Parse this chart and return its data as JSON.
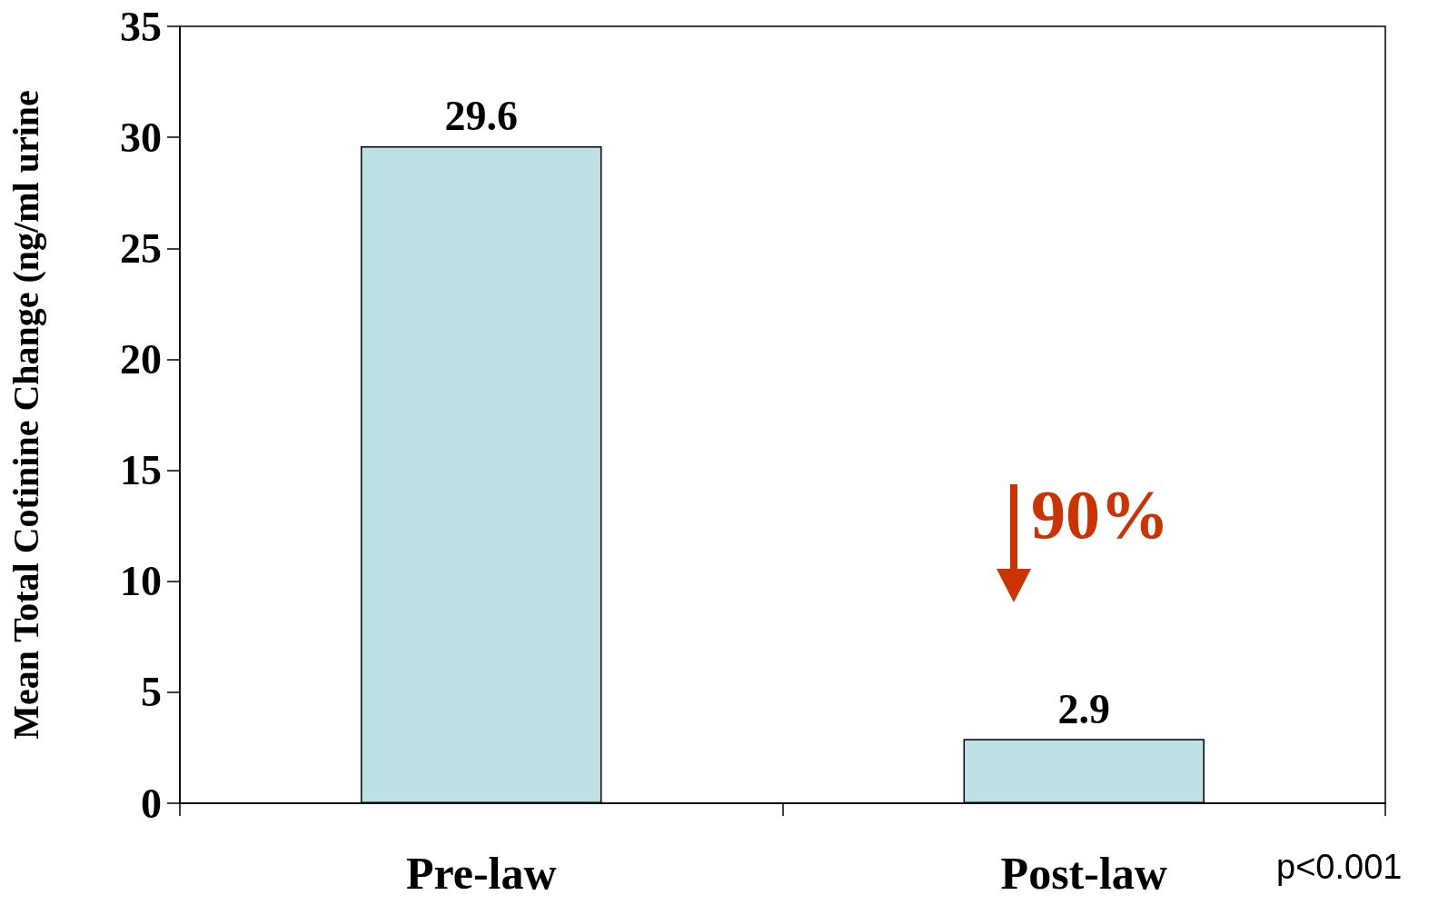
{
  "chart_data": {
    "type": "bar",
    "ylabel": "Mean Total Cotinine Change (ng/ml urine",
    "categories": [
      "Pre-law",
      "Post-law"
    ],
    "values": [
      29.6,
      2.9
    ],
    "color": "#bce0e3",
    "ylim": [
      0,
      35
    ],
    "yticks": [
      0,
      5,
      10,
      15,
      20,
      25,
      30,
      35
    ],
    "grid": false,
    "data_labels": true,
    "annotations": [
      "90%",
      "p<0.001"
    ]
  }
}
